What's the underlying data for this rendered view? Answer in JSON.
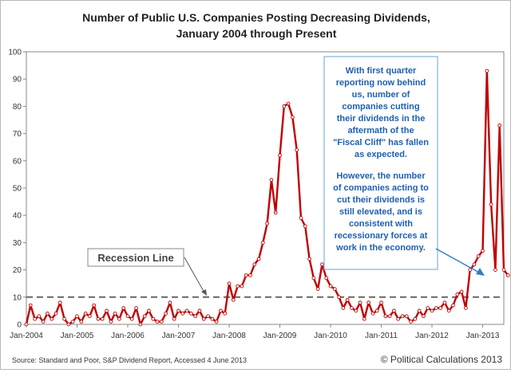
{
  "chart_data": {
    "type": "line",
    "title_lines": [
      "Number of Public U.S. Companies Posting Decreasing Dividends,",
      "January 2004 through Present"
    ],
    "xlabel": "",
    "ylabel": "",
    "ylim": [
      0,
      100
    ],
    "yticks": [
      0,
      10,
      20,
      30,
      40,
      50,
      60,
      70,
      80,
      90,
      100
    ],
    "x_tick_labels": [
      {
        "label": "Jan-2004",
        "month_index": 0
      },
      {
        "label": "Jan-2005",
        "month_index": 12
      },
      {
        "label": "Jan-2006",
        "month_index": 24
      },
      {
        "label": "Jan-2007",
        "month_index": 36
      },
      {
        "label": "Jan-2008",
        "month_index": 48
      },
      {
        "label": "Jan-2009",
        "month_index": 60
      },
      {
        "label": "Jan-2010",
        "month_index": 72
      },
      {
        "label": "Jan-2011",
        "month_index": 84
      },
      {
        "label": "Jan-2012",
        "month_index": 96
      },
      {
        "label": "Jan-2013",
        "month_index": 108
      }
    ],
    "x_range_months": [
      0,
      113
    ],
    "series": [
      {
        "name": "Decreasing dividends",
        "color": "#c00000",
        "values": [
          0,
          7,
          2,
          3,
          1,
          4,
          2,
          4,
          8,
          2,
          0,
          1,
          3,
          1,
          4,
          3,
          7,
          2,
          2,
          5,
          1,
          4,
          2,
          6,
          3,
          2,
          6,
          0,
          3,
          5,
          2,
          1,
          1,
          4,
          8,
          2,
          5,
          4,
          5,
          4,
          3,
          5,
          2,
          3,
          2,
          1,
          5,
          4,
          15,
          9,
          14,
          14,
          18,
          18,
          22,
          24,
          30,
          37,
          53,
          41,
          62,
          80,
          81,
          76,
          64,
          39,
          36,
          24,
          17,
          13,
          22,
          17,
          14,
          13,
          10,
          6,
          9,
          6,
          5,
          8,
          2,
          8,
          4,
          5,
          8,
          3,
          3,
          5,
          2,
          3,
          3,
          1,
          2,
          5,
          3,
          6,
          5,
          6,
          6,
          8,
          5,
          7,
          11,
          12,
          6,
          20,
          22,
          25,
          27,
          93,
          44,
          20,
          73,
          20,
          18
        ]
      }
    ],
    "reference_lines": [
      {
        "name": "Recession Line",
        "y": 10,
        "style": "dashed",
        "color": "#666666"
      }
    ],
    "annotation": {
      "paragraph1": [
        "With first quarter",
        "reporting now behind",
        "us, number of",
        "companies cutting",
        "their dividends in the",
        "aftermath of the",
        "\"Fiscal Cliff\" has fallen",
        "as expected."
      ],
      "paragraph2": [
        "However, the number",
        "of companies acting to",
        "cut their dividends is",
        "still elevated, and is",
        "consistent with",
        "recessionary forces at",
        "work in the economy."
      ],
      "text_color": "#1f5fae",
      "border_color": "#7fb3d9"
    },
    "recession_label": "Recession Line",
    "source": "Source: Standard and Poor, S&P Dividend Report, Accessed 4 June 2013",
    "credit": "© Political Calculations 2013"
  }
}
